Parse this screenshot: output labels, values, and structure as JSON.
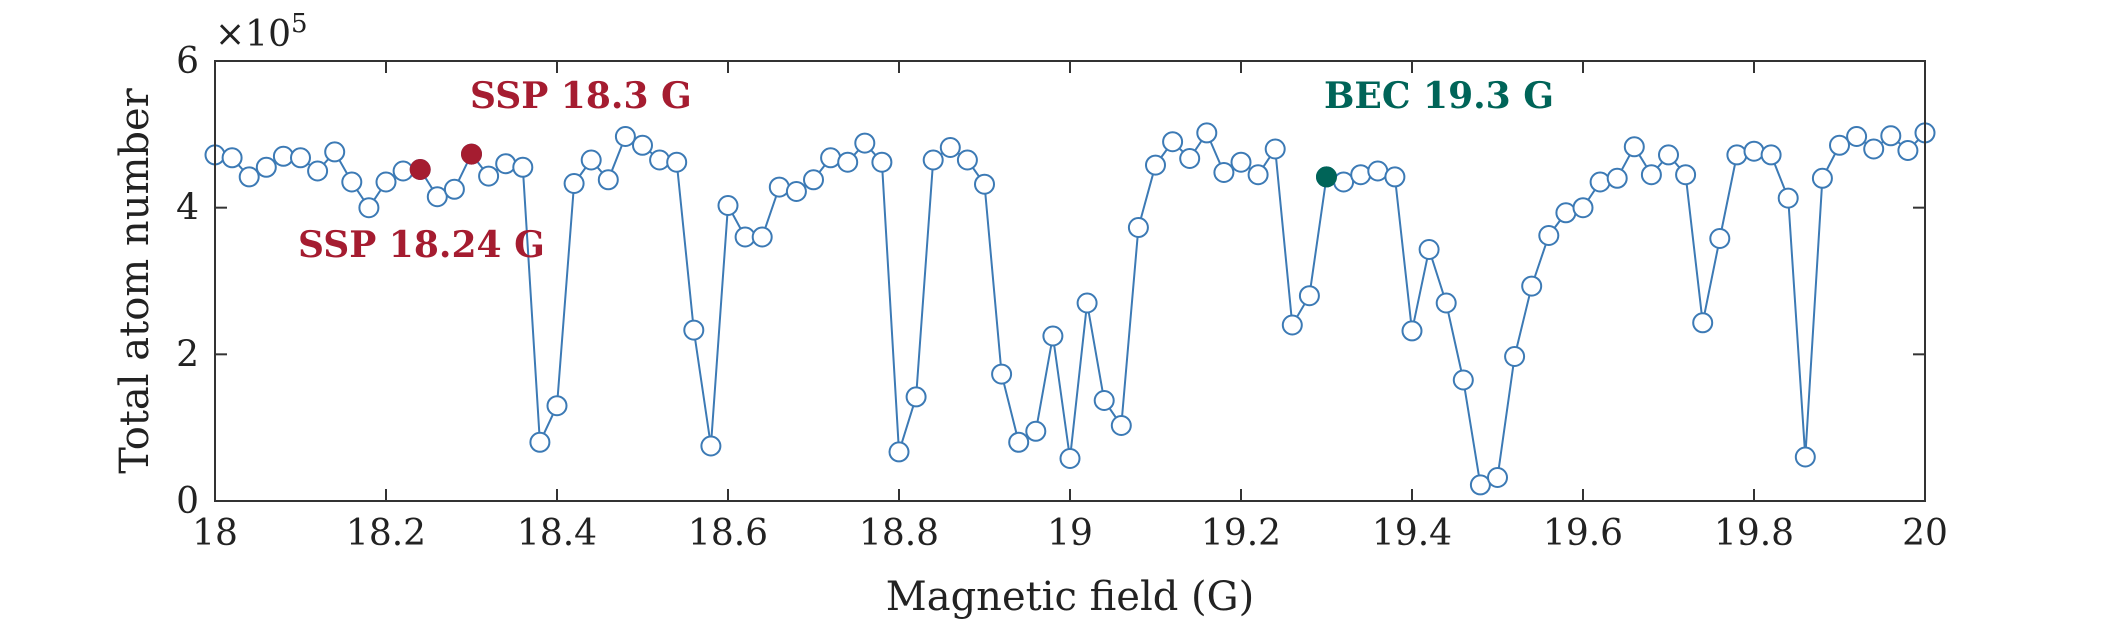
{
  "colors": {
    "series": "#3c7ab5",
    "marker_fill": "#ffffff",
    "ssp": "#a51c30",
    "bec": "#006458",
    "axis": "#333333"
  },
  "chart_data": {
    "type": "line",
    "title": "",
    "xlabel": "Magnetic field (G)",
    "ylabel": "Total atom number",
    "y_multiplier": "×10",
    "y_multiplier_exp": "5",
    "xlim": [
      18,
      20
    ],
    "ylim": [
      0,
      6
    ],
    "xticks": [
      18,
      18.2,
      18.4,
      18.6,
      18.8,
      19,
      19.2,
      19.4,
      19.6,
      19.8,
      20
    ],
    "xtick_labels": [
      "18",
      "18.2",
      "18.4",
      "18.6",
      "18.8",
      "19",
      "19.2",
      "19.4",
      "19.6",
      "19.8",
      "20"
    ],
    "yticks": [
      0,
      2,
      4,
      6
    ],
    "ytick_labels": [
      "0",
      "2",
      "4",
      "6"
    ],
    "grid": false,
    "series": [
      {
        "name": "Total atom number",
        "x": [
          18.0,
          18.02,
          18.04,
          18.06,
          18.08,
          18.1,
          18.12,
          18.14,
          18.16,
          18.18,
          18.2,
          18.22,
          18.24,
          18.26,
          18.28,
          18.3,
          18.32,
          18.34,
          18.36,
          18.38,
          18.4,
          18.42,
          18.44,
          18.46,
          18.48,
          18.5,
          18.52,
          18.54,
          18.56,
          18.58,
          18.6,
          18.62,
          18.64,
          18.66,
          18.68,
          18.7,
          18.72,
          18.74,
          18.76,
          18.78,
          18.8,
          18.82,
          18.84,
          18.86,
          18.88,
          18.9,
          18.92,
          18.94,
          18.96,
          18.98,
          19.0,
          19.02,
          19.04,
          19.06,
          19.08,
          19.1,
          19.12,
          19.14,
          19.16,
          19.18,
          19.2,
          19.22,
          19.24,
          19.26,
          19.28,
          19.3,
          19.32,
          19.34,
          19.36,
          19.38,
          19.4,
          19.42,
          19.44,
          19.46,
          19.48,
          19.5,
          19.52,
          19.54,
          19.56,
          19.58,
          19.6,
          19.62,
          19.64,
          19.66,
          19.68,
          19.7,
          19.72,
          19.74,
          19.76,
          19.78,
          19.8,
          19.82,
          19.84,
          19.86,
          19.88,
          19.9,
          19.92,
          19.94,
          19.96,
          19.98,
          20.0
        ],
        "y": [
          4.72,
          4.68,
          4.42,
          4.55,
          4.7,
          4.68,
          4.5,
          4.76,
          4.35,
          4.0,
          4.35,
          4.5,
          4.52,
          4.15,
          4.25,
          4.73,
          4.43,
          4.6,
          4.55,
          0.8,
          1.3,
          4.33,
          4.65,
          4.38,
          4.97,
          4.85,
          4.65,
          4.62,
          2.33,
          0.75,
          4.03,
          3.6,
          3.6,
          4.28,
          4.22,
          4.38,
          4.68,
          4.62,
          4.88,
          4.62,
          0.67,
          1.42,
          4.65,
          4.82,
          4.65,
          4.32,
          1.73,
          0.8,
          0.95,
          2.25,
          0.58,
          2.7,
          1.37,
          1.03,
          3.73,
          4.58,
          4.9,
          4.67,
          5.02,
          4.48,
          4.62,
          4.45,
          4.8,
          2.4,
          2.8,
          4.42,
          4.35,
          4.45,
          4.5,
          4.42,
          2.32,
          3.43,
          2.7,
          1.65,
          0.22,
          0.32,
          1.97,
          2.93,
          3.62,
          3.93,
          4.0,
          4.35,
          4.4,
          4.83,
          4.45,
          4.72,
          4.45,
          2.43,
          3.58,
          4.72,
          4.77,
          4.72,
          4.13,
          0.6,
          4.4,
          4.85,
          4.97,
          4.8,
          4.98,
          4.78,
          5.02
        ]
      }
    ],
    "highlighted_points": [
      {
        "label": "SSP 18.24 G",
        "x": 18.24,
        "y": 4.52,
        "color_key": "ssp"
      },
      {
        "label": "SSP 18.3 G",
        "x": 18.3,
        "y": 4.73,
        "color_key": "ssp"
      },
      {
        "label": "BEC 19.3 G",
        "x": 19.3,
        "y": 4.42,
        "color_key": "bec"
      }
    ]
  }
}
